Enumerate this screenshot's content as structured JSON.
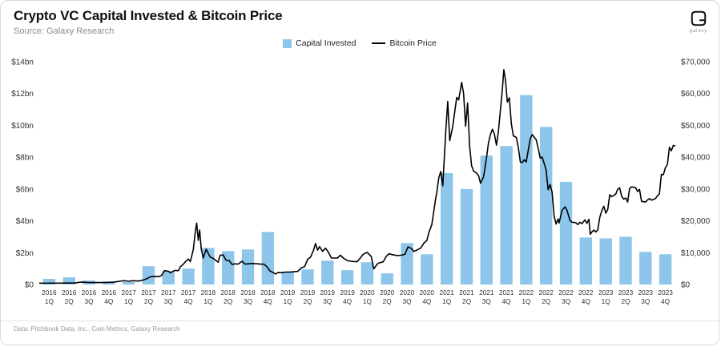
{
  "header": {
    "title": "Crypto VC Capital Invested & Bitcoin Price",
    "source": "Source: Galaxy Research",
    "logo_text": "galaxy"
  },
  "legend": [
    {
      "label": "Capital Invested",
      "color": "#8dc6ea",
      "type": "bar"
    },
    {
      "label": "Bitcoin Price",
      "color": "#000000",
      "type": "line"
    }
  ],
  "footer": {
    "text": "Data: Pitchbook Data, Inc., Coin Metrics, Galaxy Research"
  },
  "chart_data": {
    "type": "bar+line",
    "title": "Crypto VC Capital Invested & Bitcoin Price",
    "x_max": 32,
    "grid": false,
    "legend_position": "top-center",
    "categories": [
      {
        "year": "2016",
        "q": "1Q"
      },
      {
        "year": "2016",
        "q": "2Q"
      },
      {
        "year": "2016",
        "q": "3Q"
      },
      {
        "year": "2016",
        "q": "4Q"
      },
      {
        "year": "2017",
        "q": "1Q"
      },
      {
        "year": "2017",
        "q": "2Q"
      },
      {
        "year": "2017",
        "q": "3Q"
      },
      {
        "year": "2017",
        "q": "4Q"
      },
      {
        "year": "2018",
        "q": "1Q"
      },
      {
        "year": "2018",
        "q": "2Q"
      },
      {
        "year": "2018",
        "q": "3Q"
      },
      {
        "year": "2018",
        "q": "4Q"
      },
      {
        "year": "2019",
        "q": "1Q"
      },
      {
        "year": "2019",
        "q": "2Q"
      },
      {
        "year": "2019",
        "q": "3Q"
      },
      {
        "year": "2019",
        "q": "4Q"
      },
      {
        "year": "2020",
        "q": "1Q"
      },
      {
        "year": "2020",
        "q": "2Q"
      },
      {
        "year": "2020",
        "q": "3Q"
      },
      {
        "year": "2020",
        "q": "4Q"
      },
      {
        "year": "2021",
        "q": "1Q"
      },
      {
        "year": "2021",
        "q": "2Q"
      },
      {
        "year": "2021",
        "q": "3Q"
      },
      {
        "year": "2021",
        "q": "4Q"
      },
      {
        "year": "2022",
        "q": "1Q"
      },
      {
        "year": "2022",
        "q": "2Q"
      },
      {
        "year": "2022",
        "q": "3Q"
      },
      {
        "year": "2022",
        "q": "4Q"
      },
      {
        "year": "2023",
        "q": "1Q"
      },
      {
        "year": "2023",
        "q": "2Q"
      },
      {
        "year": "2023",
        "q": "3Q"
      },
      {
        "year": "2023",
        "q": "4Q"
      }
    ],
    "bar_series": {
      "name": "Capital Invested ($bn)",
      "color": "#8dc6ea",
      "axis": "left",
      "values": [
        0.35,
        0.45,
        0.25,
        0.2,
        0.15,
        1.15,
        0.85,
        1.0,
        2.3,
        2.1,
        2.2,
        3.3,
        0.8,
        0.95,
        1.5,
        0.9,
        1.4,
        0.7,
        2.6,
        1.9,
        7.0,
        6.0,
        8.1,
        8.7,
        11.9,
        9.9,
        6.45,
        2.95,
        2.9,
        3.0,
        2.05,
        1.9
      ]
    },
    "line_series": {
      "name": "Bitcoin Price (USD)",
      "color": "#000000",
      "axis": "right",
      "points": [
        [
          0,
          434
        ],
        [
          0.3,
          415
        ],
        [
          0.6,
          425
        ],
        [
          1,
          416
        ],
        [
          1.4,
          452
        ],
        [
          1.8,
          455
        ],
        [
          2,
          670
        ],
        [
          2.2,
          770
        ],
        [
          2.4,
          660
        ],
        [
          2.7,
          610
        ],
        [
          3,
          605
        ],
        [
          3.4,
          635
        ],
        [
          3.7,
          700
        ],
        [
          4,
          960
        ],
        [
          4.15,
          1130
        ],
        [
          4.3,
          1180
        ],
        [
          4.5,
          1010
        ],
        [
          4.7,
          1190
        ],
        [
          5,
          1080
        ],
        [
          5.2,
          1350
        ],
        [
          5.4,
          1800
        ],
        [
          5.6,
          2450
        ],
        [
          5.8,
          2550
        ],
        [
          6,
          2480
        ],
        [
          6.15,
          2800
        ],
        [
          6.3,
          4350
        ],
        [
          6.5,
          4150
        ],
        [
          6.6,
          3650
        ],
        [
          6.8,
          4400
        ],
        [
          7,
          4350
        ],
        [
          7.1,
          5600
        ],
        [
          7.2,
          6100
        ],
        [
          7.4,
          7400
        ],
        [
          7.5,
          8000
        ],
        [
          7.6,
          7200
        ],
        [
          7.75,
          11000
        ],
        [
          7.85,
          16500
        ],
        [
          7.92,
          19300
        ],
        [
          8,
          13900
        ],
        [
          8.07,
          17100
        ],
        [
          8.15,
          11200
        ],
        [
          8.25,
          8300
        ],
        [
          8.4,
          11100
        ],
        [
          8.5,
          9800
        ],
        [
          8.6,
          8600
        ],
        [
          8.75,
          8200
        ],
        [
          9,
          7000
        ],
        [
          9.1,
          9200
        ],
        [
          9.25,
          9300
        ],
        [
          9.4,
          7600
        ],
        [
          9.55,
          7500
        ],
        [
          9.7,
          6300
        ],
        [
          9.85,
          6500
        ],
        [
          10,
          6400
        ],
        [
          10.2,
          7300
        ],
        [
          10.35,
          6400
        ],
        [
          10.5,
          6500
        ],
        [
          10.7,
          6600
        ],
        [
          11,
          6500
        ],
        [
          11.1,
          6400
        ],
        [
          11.3,
          6400
        ],
        [
          11.45,
          5600
        ],
        [
          11.6,
          4300
        ],
        [
          11.75,
          3800
        ],
        [
          11.9,
          3300
        ],
        [
          12,
          3740
        ],
        [
          12.2,
          3700
        ],
        [
          12.4,
          3900
        ],
        [
          12.6,
          3900
        ],
        [
          12.8,
          4000
        ],
        [
          13,
          4100
        ],
        [
          13.2,
          5300
        ],
        [
          13.35,
          5600
        ],
        [
          13.5,
          7900
        ],
        [
          13.65,
          8600
        ],
        [
          13.8,
          10800
        ],
        [
          13.9,
          12900
        ],
        [
          14,
          10800
        ],
        [
          14.1,
          11900
        ],
        [
          14.25,
          10400
        ],
        [
          14.4,
          11400
        ],
        [
          14.55,
          10100
        ],
        [
          14.7,
          8300
        ],
        [
          15,
          8300
        ],
        [
          15.15,
          9200
        ],
        [
          15.3,
          8300
        ],
        [
          15.5,
          7500
        ],
        [
          15.7,
          7300
        ],
        [
          15.85,
          7200
        ],
        [
          16,
          7200
        ],
        [
          16.15,
          8300
        ],
        [
          16.3,
          9500
        ],
        [
          16.5,
          10100
        ],
        [
          16.7,
          8800
        ],
        [
          16.83,
          4900
        ],
        [
          17,
          6400
        ],
        [
          17.1,
          6800
        ],
        [
          17.3,
          7100
        ],
        [
          17.45,
          8800
        ],
        [
          17.6,
          9700
        ],
        [
          17.75,
          9400
        ],
        [
          18,
          9100
        ],
        [
          18.2,
          9200
        ],
        [
          18.4,
          9500
        ],
        [
          18.55,
          11800
        ],
        [
          18.7,
          11400
        ],
        [
          18.85,
          10400
        ],
        [
          19,
          10800
        ],
        [
          19.2,
          11500
        ],
        [
          19.35,
          13000
        ],
        [
          19.5,
          13800
        ],
        [
          19.6,
          16300
        ],
        [
          19.75,
          18800
        ],
        [
          19.85,
          23000
        ],
        [
          19.93,
          26500
        ],
        [
          20,
          29000
        ],
        [
          20.1,
          33500
        ],
        [
          20.2,
          35500
        ],
        [
          20.3,
          31000
        ],
        [
          20.45,
          48000
        ],
        [
          20.55,
          57500
        ],
        [
          20.65,
          45200
        ],
        [
          20.8,
          49600
        ],
        [
          21,
          58800
        ],
        [
          21.1,
          58000
        ],
        [
          21.25,
          63500
        ],
        [
          21.35,
          60000
        ],
        [
          21.45,
          49700
        ],
        [
          21.55,
          57000
        ],
        [
          21.65,
          43500
        ],
        [
          21.75,
          37300
        ],
        [
          21.85,
          35600
        ],
        [
          22,
          35000
        ],
        [
          22.1,
          34200
        ],
        [
          22.2,
          31800
        ],
        [
          22.35,
          33800
        ],
        [
          22.5,
          39800
        ],
        [
          22.6,
          44600
        ],
        [
          22.7,
          47100
        ],
        [
          22.8,
          48800
        ],
        [
          22.9,
          47200
        ],
        [
          23,
          43800
        ],
        [
          23.1,
          48200
        ],
        [
          23.2,
          54700
        ],
        [
          23.3,
          61400
        ],
        [
          23.37,
          67500
        ],
        [
          23.45,
          64400
        ],
        [
          23.55,
          57300
        ],
        [
          23.65,
          58700
        ],
        [
          23.75,
          50500
        ],
        [
          23.85,
          46700
        ],
        [
          24,
          46200
        ],
        [
          24.1,
          43100
        ],
        [
          24.2,
          38500
        ],
        [
          24.3,
          38300
        ],
        [
          24.4,
          39200
        ],
        [
          24.5,
          38500
        ],
        [
          24.6,
          42200
        ],
        [
          24.7,
          45800
        ],
        [
          24.8,
          47100
        ],
        [
          24.9,
          46300
        ],
        [
          25,
          45500
        ],
        [
          25.1,
          42800
        ],
        [
          25.2,
          39700
        ],
        [
          25.3,
          40000
        ],
        [
          25.4,
          38100
        ],
        [
          25.5,
          36000
        ],
        [
          25.6,
          29800
        ],
        [
          25.7,
          31400
        ],
        [
          25.8,
          29000
        ],
        [
          25.9,
          21600
        ],
        [
          26,
          19000
        ],
        [
          26.1,
          20600
        ],
        [
          26.15,
          19300
        ],
        [
          26.3,
          23300
        ],
        [
          26.45,
          24400
        ],
        [
          26.55,
          23300
        ],
        [
          26.7,
          20100
        ],
        [
          26.8,
          19600
        ],
        [
          27,
          19400
        ],
        [
          27.1,
          18800
        ],
        [
          27.2,
          19600
        ],
        [
          27.3,
          19100
        ],
        [
          27.45,
          20300
        ],
        [
          27.55,
          19200
        ],
        [
          27.65,
          20500
        ],
        [
          27.72,
          15800
        ],
        [
          27.8,
          16500
        ],
        [
          27.9,
          17100
        ],
        [
          28,
          16500
        ],
        [
          28.1,
          17200
        ],
        [
          28.2,
          21100
        ],
        [
          28.3,
          23200
        ],
        [
          28.4,
          24600
        ],
        [
          28.5,
          22400
        ],
        [
          28.6,
          23500
        ],
        [
          28.7,
          28200
        ],
        [
          28.8,
          27600
        ],
        [
          29,
          28400
        ],
        [
          29.1,
          29900
        ],
        [
          29.2,
          30400
        ],
        [
          29.3,
          27700
        ],
        [
          29.4,
          26800
        ],
        [
          29.5,
          27200
        ],
        [
          29.6,
          25900
        ],
        [
          29.7,
          30200
        ],
        [
          29.8,
          30700
        ],
        [
          30,
          30400
        ],
        [
          30.1,
          29200
        ],
        [
          30.2,
          29900
        ],
        [
          30.3,
          26100
        ],
        [
          30.4,
          26000
        ],
        [
          30.5,
          25900
        ],
        [
          30.6,
          26600
        ],
        [
          30.7,
          27000
        ],
        [
          30.8,
          26500
        ],
        [
          31,
          27000
        ],
        [
          31.1,
          27900
        ],
        [
          31.2,
          28500
        ],
        [
          31.3,
          34600
        ],
        [
          31.4,
          34500
        ],
        [
          31.5,
          36700
        ],
        [
          31.6,
          37700
        ],
        [
          31.7,
          43100
        ],
        [
          31.8,
          42000
        ],
        [
          31.9,
          43700
        ],
        [
          32,
          43500
        ]
      ]
    },
    "left_axis": {
      "label": "Capital Invested",
      "min": 0,
      "max": 14,
      "ticks": [
        {
          "v": 0,
          "label": "$0"
        },
        {
          "v": 2,
          "label": "$2bn"
        },
        {
          "v": 4,
          "label": "$4bn"
        },
        {
          "v": 6,
          "label": "$6bn"
        },
        {
          "v": 8,
          "label": "$8bn"
        },
        {
          "v": 10,
          "label": "$10bn"
        },
        {
          "v": 12,
          "label": "$12bn"
        },
        {
          "v": 14,
          "label": "$14bn"
        }
      ]
    },
    "right_axis": {
      "label": "Bitcoin Price",
      "min": 0,
      "max": 70000,
      "ticks": [
        {
          "v": 0,
          "label": "$0"
        },
        {
          "v": 10000,
          "label": "$10,000"
        },
        {
          "v": 20000,
          "label": "$20,000"
        },
        {
          "v": 30000,
          "label": "$30,000"
        },
        {
          "v": 40000,
          "label": "$40,000"
        },
        {
          "v": 50000,
          "label": "$50,000"
        },
        {
          "v": 60000,
          "label": "$60,000"
        },
        {
          "v": 70000,
          "label": "$70,000"
        }
      ]
    }
  }
}
